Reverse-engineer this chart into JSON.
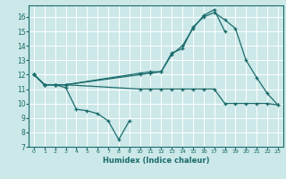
{
  "xlabel": "Humidex (Indice chaleur)",
  "bg_color": "#cce8e8",
  "grid_color": "#ffffff",
  "line_color": "#1a6b6b",
  "xlim": [
    -0.5,
    23.5
  ],
  "ylim": [
    7,
    16.8
  ],
  "yticks": [
    7,
    8,
    9,
    10,
    11,
    12,
    13,
    14,
    15,
    16
  ],
  "xticks": [
    0,
    1,
    2,
    3,
    4,
    5,
    6,
    7,
    8,
    9,
    10,
    11,
    12,
    13,
    14,
    15,
    16,
    17,
    18,
    19,
    20,
    21,
    22,
    23
  ],
  "line1_x": [
    0,
    1,
    2,
    3,
    4,
    5,
    6,
    7,
    8,
    9
  ],
  "line1_y": [
    12.0,
    11.3,
    11.3,
    11.1,
    9.6,
    9.5,
    9.3,
    8.8,
    7.5,
    8.8
  ],
  "line2_x": [
    0,
    1,
    2,
    3,
    10,
    11,
    12,
    13,
    14,
    15,
    16,
    17,
    18,
    19,
    20,
    21,
    22,
    23
  ],
  "line2_y": [
    12.0,
    11.3,
    11.3,
    11.3,
    12.1,
    12.2,
    12.2,
    13.5,
    13.8,
    15.3,
    16.0,
    16.3,
    15.8,
    15.2,
    13.0,
    11.8,
    10.7,
    9.9
  ],
  "line3_x": [
    0,
    1,
    2,
    3,
    10,
    11,
    12,
    13,
    14,
    15,
    16,
    17,
    18,
    19,
    20,
    21,
    22,
    23
  ],
  "line3_y": [
    12.0,
    11.3,
    11.3,
    11.3,
    11.0,
    11.0,
    11.0,
    11.0,
    11.0,
    11.0,
    11.0,
    11.0,
    10.0,
    10.0,
    10.0,
    10.0,
    10.0,
    9.9
  ],
  "line4_x": [
    0,
    1,
    2,
    3,
    10,
    11,
    12,
    13,
    14,
    15,
    16,
    17,
    18
  ],
  "line4_y": [
    12.0,
    11.3,
    11.3,
    11.3,
    12.0,
    12.1,
    12.2,
    13.4,
    14.0,
    15.2,
    16.1,
    16.5,
    15.0
  ]
}
